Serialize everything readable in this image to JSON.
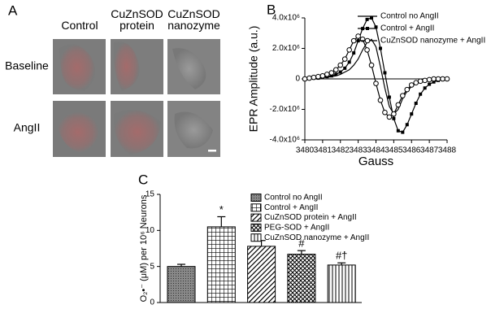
{
  "panel_a": {
    "label": "A",
    "columns": [
      "Control",
      "CuZnSOD protein",
      "CuZnSOD nanozyme"
    ],
    "rows": [
      "Baseline",
      "AngII"
    ]
  },
  "chart_data": [
    {
      "panel_label": "B",
      "type": "line",
      "xlabel": "Gauss",
      "ylabel": "EPR Amplitude (a.u.)",
      "x": [
        3480,
        3480.25,
        3480.5,
        3480.75,
        3481,
        3481.25,
        3481.5,
        3481.75,
        3482,
        3482.25,
        3482.5,
        3482.75,
        3483,
        3483.25,
        3483.5,
        3483.75,
        3484,
        3484.25,
        3484.5,
        3484.75,
        3485,
        3485.25,
        3485.5,
        3485.75,
        3486,
        3486.25,
        3486.5,
        3486.75,
        3487,
        3487.25,
        3487.5,
        3487.75,
        3488
      ],
      "xlim": [
        3480,
        3488
      ],
      "xticks": [
        3480,
        3481,
        3482,
        3483,
        3484,
        3485,
        3486,
        3487,
        3488
      ],
      "ylim": [
        -4000000,
        4000000
      ],
      "yticks": [
        {
          "value": -4000000,
          "label": "-4.0x10⁶"
        },
        {
          "value": -2000000,
          "label": "-2.0x10⁶"
        },
        0,
        {
          "value": 2000000,
          "label": "2.0x10⁶"
        },
        {
          "value": 4000000,
          "label": "4.0x10⁶"
        }
      ],
      "series": [
        {
          "name": "Control no AngII",
          "color": "#000000",
          "marker": "none",
          "values": [
            0,
            0,
            50000,
            50000,
            100000,
            100000,
            150000,
            200000,
            300000,
            450000,
            600000,
            900000,
            1300000,
            1900000,
            2400000,
            2600000,
            2100000,
            800000,
            -600000,
            -1800000,
            -2300000,
            -2000000,
            -1300000,
            -800000,
            -500000,
            -300000,
            -200000,
            -100000,
            -50000,
            0,
            0,
            0,
            0
          ]
        },
        {
          "name": "Control + AngII",
          "color": "#000000",
          "marker": "square",
          "values": [
            0,
            0,
            50000,
            50000,
            100000,
            150000,
            200000,
            300000,
            450000,
            700000,
            1100000,
            1700000,
            2500000,
            3300000,
            3900000,
            4000000,
            3400000,
            2000000,
            400000,
            -1200000,
            -2600000,
            -3400000,
            -3500000,
            -3000000,
            -2300000,
            -1600000,
            -1000000,
            -600000,
            -350000,
            -200000,
            -100000,
            -50000,
            0
          ]
        },
        {
          "name": "CuZnSOD nanozyme + AngII",
          "color": "#000000",
          "marker": "circle",
          "values": [
            0,
            50000,
            100000,
            150000,
            200000,
            300000,
            400000,
            600000,
            900000,
            1300000,
            1900000,
            2500000,
            2800000,
            2600000,
            1900000,
            900000,
            -300000,
            -1400000,
            -2200000,
            -2500000,
            -2300000,
            -1700000,
            -1100000,
            -700000,
            -400000,
            -250000,
            -150000,
            -100000,
            -50000,
            0,
            0,
            0,
            0
          ]
        }
      ]
    },
    {
      "panel_label": "C",
      "type": "bar",
      "ylabel": "O₂•⁻ (μM) per 10⁶ Neurons",
      "categories": [
        "Control no AngII",
        "Control + AngII",
        "CuZnSOD protein + AngII",
        "PEG-SOD + AngII",
        "CuZnSOD nanozyme + AngII"
      ],
      "values": [
        5.0,
        10.5,
        7.8,
        6.7,
        5.2
      ],
      "errors": [
        0.3,
        1.4,
        0.8,
        0.5,
        0.3
      ],
      "annotations": [
        null,
        "*",
        null,
        "#",
        "#†"
      ],
      "patterns": [
        "dots",
        "grid",
        "diagonal",
        "crosshatch",
        "vertical"
      ],
      "color": "#000000",
      "ylim": [
        0,
        15
      ],
      "yticks": [
        0,
        5,
        10,
        15
      ]
    }
  ]
}
